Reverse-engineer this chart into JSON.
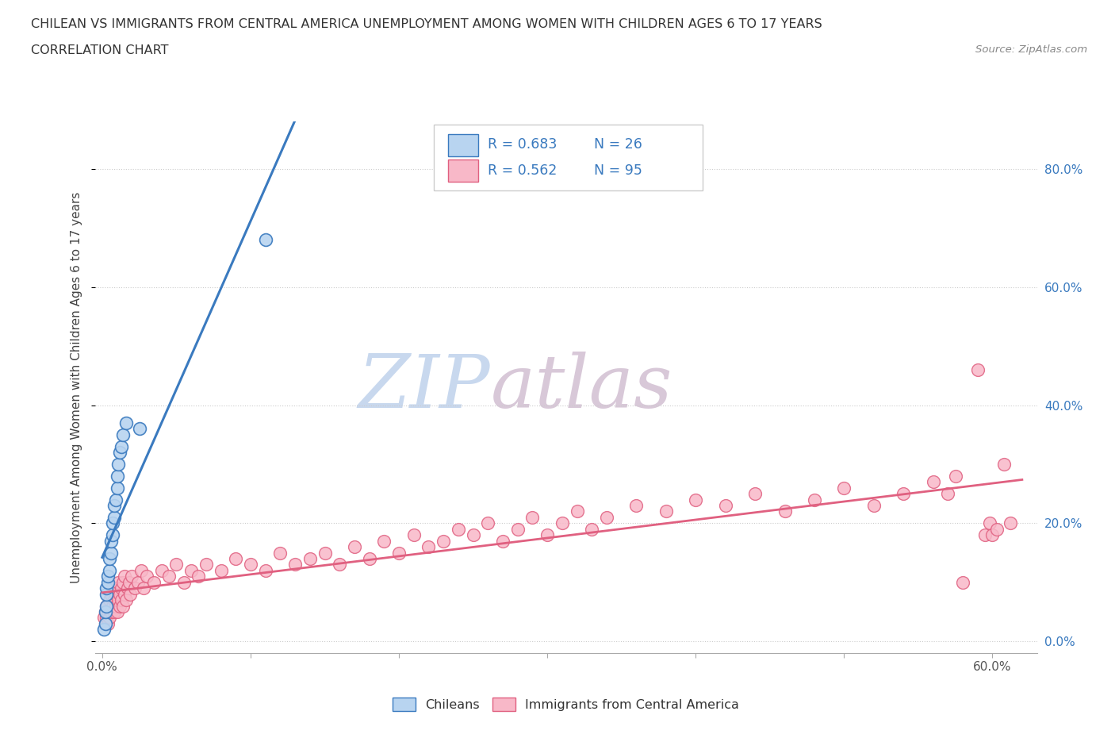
{
  "title_line1": "CHILEAN VS IMMIGRANTS FROM CENTRAL AMERICA UNEMPLOYMENT AMONG WOMEN WITH CHILDREN AGES 6 TO 17 YEARS",
  "title_line2": "CORRELATION CHART",
  "source_text": "Source: ZipAtlas.com",
  "ylabel": "Unemployment Among Women with Children Ages 6 to 17 years",
  "watermark_zip": "ZIP",
  "watermark_atlas": "atlas",
  "legend_label1": "Chileans",
  "legend_label2": "Immigrants from Central America",
  "r1": 0.683,
  "n1": 26,
  "r2": 0.562,
  "n2": 95,
  "color1": "#b8d4f0",
  "color2": "#f8b8c8",
  "line_color1": "#3a7abf",
  "line_color2": "#e06080",
  "xlim": [
    -0.005,
    0.63
  ],
  "ylim": [
    -0.02,
    0.88
  ],
  "ytick_positions": [
    0.0,
    0.2,
    0.4,
    0.6,
    0.8
  ],
  "ytick_labels": [
    "0.0%",
    "20.0%",
    "40.0%",
    "60.0%",
    "80.0%"
  ],
  "xtick_positions": [
    0.0,
    0.1,
    0.2,
    0.3,
    0.4,
    0.5,
    0.6
  ],
  "xtick_labels_bottom": [
    "0.0%",
    "",
    "",
    "",
    "",
    "",
    "60.0%"
  ],
  "chileans_x": [
    0.001,
    0.002,
    0.002,
    0.003,
    0.003,
    0.003,
    0.004,
    0.004,
    0.005,
    0.005,
    0.006,
    0.006,
    0.007,
    0.007,
    0.008,
    0.008,
    0.009,
    0.01,
    0.01,
    0.011,
    0.012,
    0.013,
    0.014,
    0.016,
    0.025,
    0.11
  ],
  "chileans_y": [
    0.02,
    0.03,
    0.05,
    0.06,
    0.08,
    0.09,
    0.1,
    0.11,
    0.12,
    0.14,
    0.15,
    0.17,
    0.18,
    0.2,
    0.21,
    0.23,
    0.24,
    0.26,
    0.28,
    0.3,
    0.32,
    0.33,
    0.35,
    0.37,
    0.36,
    0.68
  ],
  "immigrants_x": [
    0.001,
    0.002,
    0.002,
    0.003,
    0.003,
    0.004,
    0.004,
    0.005,
    0.005,
    0.006,
    0.006,
    0.007,
    0.007,
    0.008,
    0.008,
    0.009,
    0.009,
    0.01,
    0.01,
    0.011,
    0.011,
    0.012,
    0.012,
    0.013,
    0.013,
    0.014,
    0.014,
    0.015,
    0.015,
    0.016,
    0.017,
    0.018,
    0.019,
    0.02,
    0.022,
    0.024,
    0.026,
    0.028,
    0.03,
    0.035,
    0.04,
    0.045,
    0.05,
    0.055,
    0.06,
    0.065,
    0.07,
    0.08,
    0.09,
    0.1,
    0.11,
    0.12,
    0.13,
    0.14,
    0.15,
    0.16,
    0.17,
    0.18,
    0.19,
    0.2,
    0.21,
    0.22,
    0.23,
    0.24,
    0.25,
    0.26,
    0.27,
    0.28,
    0.29,
    0.3,
    0.31,
    0.32,
    0.33,
    0.34,
    0.36,
    0.38,
    0.4,
    0.42,
    0.44,
    0.46,
    0.48,
    0.5,
    0.52,
    0.54,
    0.56,
    0.57,
    0.575,
    0.58,
    0.59,
    0.595,
    0.598,
    0.6,
    0.603,
    0.608,
    0.612
  ],
  "immigrants_y": [
    0.04,
    0.03,
    0.05,
    0.04,
    0.06,
    0.03,
    0.05,
    0.04,
    0.07,
    0.05,
    0.08,
    0.06,
    0.09,
    0.05,
    0.07,
    0.06,
    0.08,
    0.05,
    0.09,
    0.07,
    0.1,
    0.06,
    0.08,
    0.07,
    0.09,
    0.06,
    0.1,
    0.08,
    0.11,
    0.07,
    0.09,
    0.1,
    0.08,
    0.11,
    0.09,
    0.1,
    0.12,
    0.09,
    0.11,
    0.1,
    0.12,
    0.11,
    0.13,
    0.1,
    0.12,
    0.11,
    0.13,
    0.12,
    0.14,
    0.13,
    0.12,
    0.15,
    0.13,
    0.14,
    0.15,
    0.13,
    0.16,
    0.14,
    0.17,
    0.15,
    0.18,
    0.16,
    0.17,
    0.19,
    0.18,
    0.2,
    0.17,
    0.19,
    0.21,
    0.18,
    0.2,
    0.22,
    0.19,
    0.21,
    0.23,
    0.22,
    0.24,
    0.23,
    0.25,
    0.22,
    0.24,
    0.26,
    0.23,
    0.25,
    0.27,
    0.25,
    0.28,
    0.1,
    0.46,
    0.18,
    0.2,
    0.18,
    0.19,
    0.3,
    0.2
  ]
}
